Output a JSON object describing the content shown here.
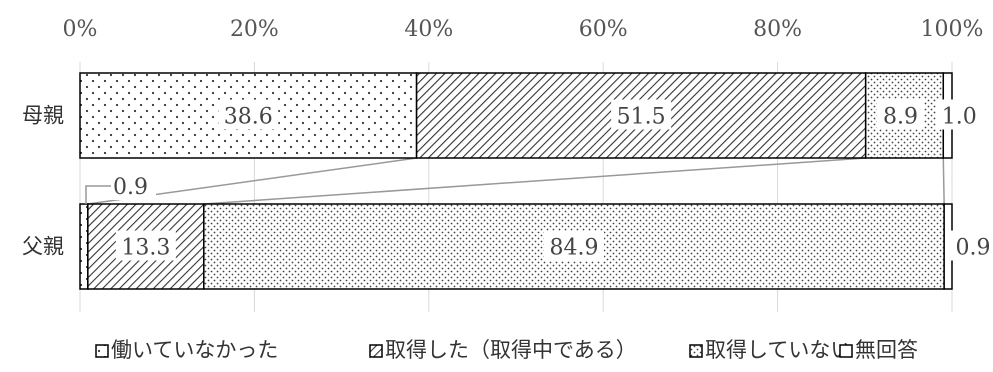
{
  "chart_data": {
    "type": "bar",
    "orientation": "horizontal",
    "stacked": "percent",
    "categories": [
      "母親",
      "父親"
    ],
    "series": [
      {
        "name": "働いていなかった",
        "values": [
          38.6,
          0.9
        ],
        "pattern": "sparse-dots"
      },
      {
        "name": "取得した（取得中である）",
        "values": [
          51.5,
          13.3
        ],
        "pattern": "diagonal-hatch"
      },
      {
        "name": "取得していない",
        "values": [
          8.9,
          84.9
        ],
        "pattern": "dense-dots"
      },
      {
        "name": "無回答",
        "values": [
          1.0,
          0.9
        ],
        "pattern": "plain"
      }
    ],
    "x_ticks": [
      "0%",
      "20%",
      "40%",
      "60%",
      "80%",
      "100%"
    ],
    "xlim": [
      0,
      100
    ],
    "grid": "vertical",
    "legend_position": "bottom",
    "series_lines": true,
    "colors": {
      "bar_outline": "#000000",
      "gridline": "#d9d9d9",
      "text": "#555555",
      "series_line": "#999999"
    }
  }
}
